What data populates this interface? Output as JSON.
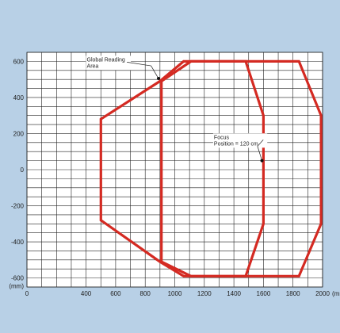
{
  "chart_data": {
    "type": "line",
    "title": "",
    "xlabel": "",
    "ylabel": "",
    "x_unit_label": "(mm)",
    "y_unit_label": "(mm)",
    "xlim": [
      0,
      2000
    ],
    "ylim": [
      -650,
      650
    ],
    "x_ticks": [
      {
        "value": 0,
        "label": "0"
      },
      {
        "value": 400,
        "label": "400"
      },
      {
        "value": 600,
        "label": "600"
      },
      {
        "value": 800,
        "label": "800"
      },
      {
        "value": 1000,
        "label": "1000"
      },
      {
        "value": 1200,
        "label": "1200"
      },
      {
        "value": 1400,
        "label": "1400"
      },
      {
        "value": 1600,
        "label": "1600"
      },
      {
        "value": 1800,
        "label": "1800"
      },
      {
        "value": 2000,
        "label": "2000"
      }
    ],
    "y_ticks": [
      {
        "value": 600,
        "label": "600"
      },
      {
        "value": 400,
        "label": "400"
      },
      {
        "value": 200,
        "label": "200"
      },
      {
        "value": 0,
        "label": "0"
      },
      {
        "value": -200,
        "label": "-200"
      },
      {
        "value": -400,
        "label": "-400"
      },
      {
        "value": -600,
        "label": "-600"
      }
    ],
    "grid": true,
    "series": [
      {
        "color": "#d42a22",
        "closed": true,
        "points": [
          [
            500,
            280
          ],
          [
            900,
            490
          ],
          [
            1060,
            600
          ],
          [
            1480,
            600
          ],
          [
            1600,
            300
          ],
          [
            1600,
            -300
          ],
          [
            1480,
            -590
          ],
          [
            1060,
            -590
          ],
          [
            900,
            -510
          ],
          [
            500,
            -280
          ]
        ]
      },
      {
        "color": "#d42a22",
        "closed": true,
        "points": [
          [
            910,
            490
          ],
          [
            1110,
            600
          ],
          [
            1840,
            600
          ],
          [
            1990,
            300
          ],
          [
            1990,
            -300
          ],
          [
            1840,
            -590
          ],
          [
            1110,
            -590
          ],
          [
            910,
            -510
          ]
        ]
      }
    ],
    "annotations": [
      {
        "text_lines": [
          "Global Reading",
          "Area"
        ],
        "target": [
          890,
          505
        ]
      },
      {
        "text_lines": [
          "Focus",
          "Position = 120 cm"
        ],
        "target": [
          1590,
          50
        ]
      }
    ]
  }
}
